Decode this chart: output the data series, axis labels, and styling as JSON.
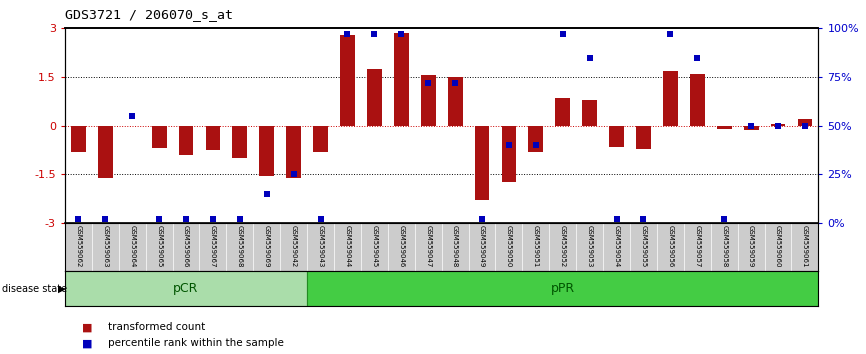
{
  "title": "GDS3721 / 206070_s_at",
  "samples": [
    "GSM559062",
    "GSM559063",
    "GSM559064",
    "GSM559065",
    "GSM559066",
    "GSM559067",
    "GSM559068",
    "GSM559069",
    "GSM559042",
    "GSM559043",
    "GSM559044",
    "GSM559045",
    "GSM559046",
    "GSM559047",
    "GSM559048",
    "GSM559049",
    "GSM559050",
    "GSM559051",
    "GSM559052",
    "GSM559053",
    "GSM559054",
    "GSM559055",
    "GSM559056",
    "GSM559057",
    "GSM559058",
    "GSM559059",
    "GSM559060",
    "GSM559061"
  ],
  "bar_values": [
    -0.8,
    -1.6,
    0.0,
    -0.7,
    -0.9,
    -0.75,
    -1.0,
    -1.55,
    -1.6,
    -0.8,
    2.8,
    1.75,
    2.85,
    1.55,
    1.5,
    -2.3,
    -1.75,
    -0.8,
    0.85,
    0.8,
    -0.65,
    -0.72,
    1.7,
    1.58,
    -0.1,
    -0.12,
    0.05,
    0.2
  ],
  "percentile_values": [
    2,
    2,
    55,
    2,
    2,
    2,
    2,
    15,
    25,
    2,
    97,
    97,
    97,
    72,
    72,
    2,
    40,
    40,
    97,
    85,
    2,
    2,
    97,
    85,
    2,
    50,
    50,
    50
  ],
  "pCR_indices": [
    0,
    9
  ],
  "pPR_indices": [
    9,
    28
  ],
  "ylim": [
    -3,
    3
  ],
  "yticks_left": [
    -3,
    -1.5,
    0,
    1.5,
    3
  ],
  "yticks_left_labels": [
    "-3",
    "-1.5",
    "0",
    "1.5",
    "3"
  ],
  "yticks_right": [
    0,
    25,
    50,
    75,
    100
  ],
  "yticks_right_labels": [
    "0%",
    "25%",
    "50%",
    "75%",
    "100%"
  ],
  "bar_color": "#aa1111",
  "dot_color": "#0000bb",
  "pCR_color": "#aaddaa",
  "pPR_color": "#44cc44",
  "bg_color": "#cccccc",
  "legend_bar_label": "transformed count",
  "legend_dot_label": "percentile rank within the sample",
  "disease_state_label": "disease state"
}
